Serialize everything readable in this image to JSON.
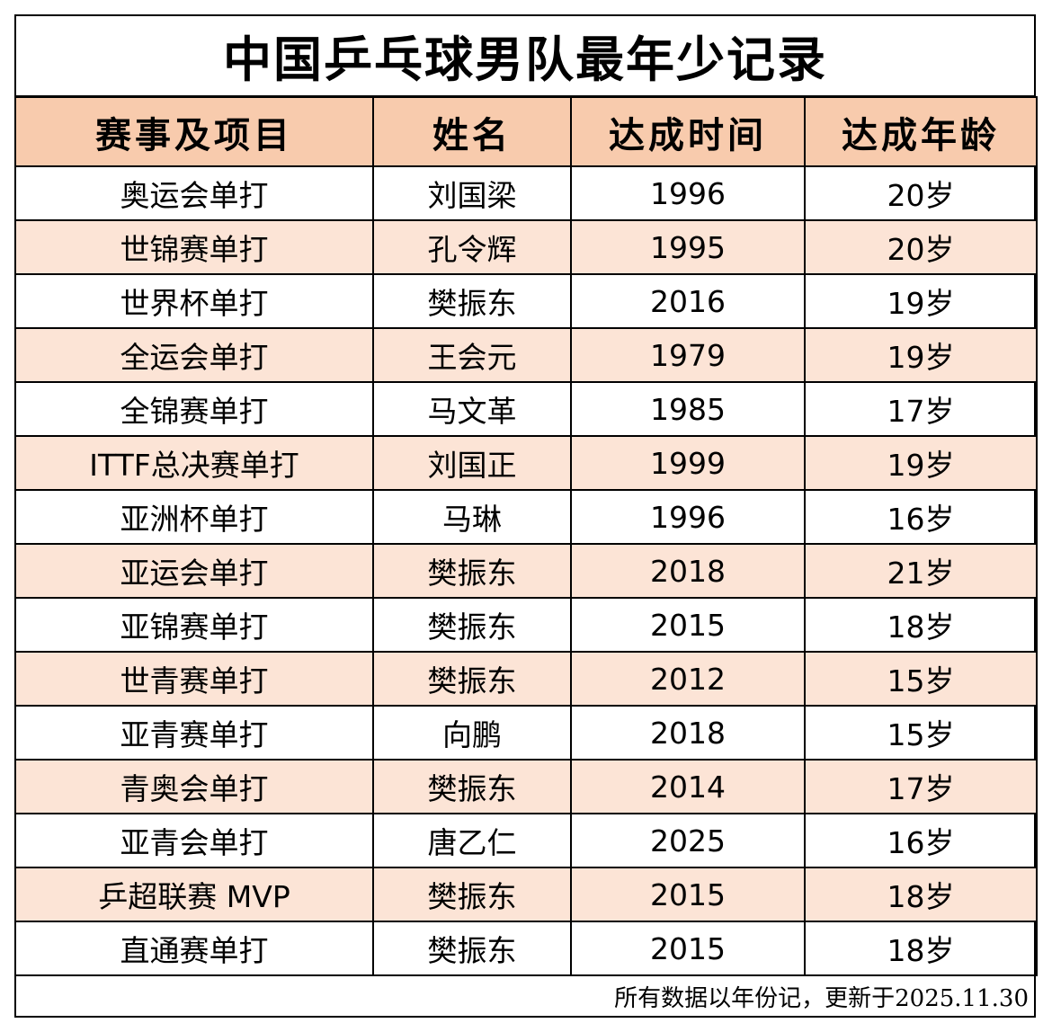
{
  "title": "中国乒乓球男队最年少记录",
  "headers": [
    "赛事及项目",
    "姓名",
    "达成时间",
    "达成年龄"
  ],
  "rows": [
    {
      "event": "奥运会单打",
      "name": "刘国梁",
      "year": "1996",
      "age": "20岁"
    },
    {
      "event": "世锦赛单打",
      "name": "孔令辉",
      "year": "1995",
      "age": "20岁"
    },
    {
      "event": "世界杯单打",
      "name": "樊振东",
      "year": "2016",
      "age": "19岁"
    },
    {
      "event": "全运会单打",
      "name": "王会元",
      "year": "1979",
      "age": "19岁"
    },
    {
      "event": "全锦赛单打",
      "name": "马文革",
      "year": "1985",
      "age": "17岁"
    },
    {
      "event": "ITTF总决赛单打",
      "name": "刘国正",
      "year": "1999",
      "age": "19岁"
    },
    {
      "event": "亚洲杯单打",
      "name": "马琳",
      "year": "1996",
      "age": "16岁"
    },
    {
      "event": "亚运会单打",
      "name": "樊振东",
      "year": "2018",
      "age": "21岁"
    },
    {
      "event": "亚锦赛单打",
      "name": "樊振东",
      "year": "2015",
      "age": "18岁"
    },
    {
      "event": "世青赛单打",
      "name": "樊振东",
      "year": "2012",
      "age": "15岁"
    },
    {
      "event": "亚青赛单打",
      "name": "向鹏",
      "year": "2018",
      "age": "15岁"
    },
    {
      "event": "青奥会单打",
      "name": "樊振东",
      "year": "2014",
      "age": "17岁"
    },
    {
      "event": "亚青会单打",
      "name": "唐乙仁",
      "year": "2025",
      "age": "16岁"
    },
    {
      "event": "乒超联赛 MVP",
      "name": "樊振东",
      "year": "2015",
      "age": "18岁"
    },
    {
      "event": "直通赛单打",
      "name": "樊振东",
      "year": "2015",
      "age": "18岁"
    }
  ],
  "footer": "所有数据以年份记，更新于2025.11.30",
  "colors": {
    "header_bg": "#f8cbad",
    "alt_row_bg": "#fce4d6",
    "border": "#000000"
  }
}
